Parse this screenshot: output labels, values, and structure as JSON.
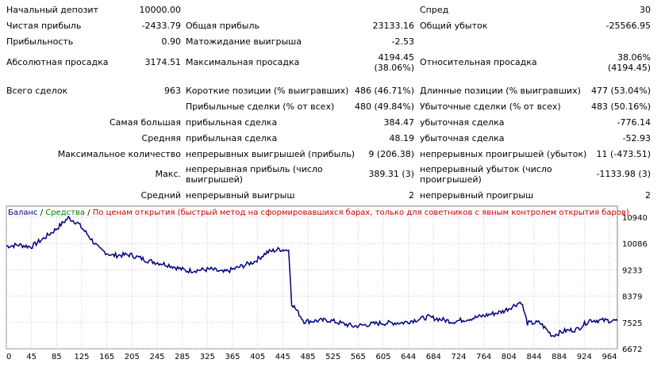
{
  "stats": {
    "initial_deposit": {
      "label": "Начальный депозит",
      "value": "10000.00"
    },
    "spread": {
      "label": "Спред",
      "value": "30"
    },
    "net_profit": {
      "label": "Чистая прибыль",
      "value": "-2433.79"
    },
    "gross_profit": {
      "label": "Общая прибыль",
      "value": "23133.16"
    },
    "gross_loss": {
      "label": "Общий убыток",
      "value": "-25566.95"
    },
    "profit_factor": {
      "label": "Прибыльность",
      "value": "0.90"
    },
    "expected_payoff": {
      "label": "Матожидание выигрыша",
      "value": "-2.53"
    },
    "abs_drawdown": {
      "label": "Абсолютная просадка",
      "value": "3174.51"
    },
    "max_drawdown": {
      "label": "Максимальная просадка",
      "value1": "4194.45",
      "value2": "(38.06%)"
    },
    "rel_drawdown": {
      "label": "Относительная просадка",
      "value1": "38.06%",
      "value2": "(4194.45)"
    },
    "total_trades": {
      "label": "Всего сделок",
      "value": "963"
    },
    "short_positions": {
      "label": "Короткие позиции (% выигравших)",
      "value": "486 (46.71%)"
    },
    "long_positions": {
      "label": "Длинные позиции (% выигравших)",
      "value": "477 (53.04%)"
    },
    "profit_trades": {
      "label": "Прибыльные сделки (% от всех)",
      "value": "480 (49.84%)"
    },
    "loss_trades": {
      "label": "Убыточные сделки (% от всех)",
      "value": "483 (50.16%)"
    },
    "largest": {
      "label": "Самая большая",
      "profit_label": "прибыльная сделка",
      "profit_value": "384.47",
      "loss_label": "убыточная сделка",
      "loss_value": "-776.14"
    },
    "average": {
      "label": "Средняя",
      "profit_label": "прибыльная сделка",
      "profit_value": "48.19",
      "loss_label": "убыточная сделка",
      "loss_value": "-52.93"
    },
    "max_consecutive": {
      "label": "Максимальное количество",
      "wins_label": "непрерывных выигрышей (прибыль)",
      "wins_value": "9 (206.38)",
      "losses_label": "непрерывных проигрышей (убыток)",
      "losses_value": "11 (-473.51)"
    },
    "max_consecutive_profit": {
      "label": "Макс.",
      "profit_label": "непрерывная прибыль (число выигрышей)",
      "profit_value": "389.31 (3)",
      "loss_label": "непрерывный убыток (число проигрышей)",
      "loss_value": "-1133.98 (3)"
    },
    "avg_consecutive": {
      "label": "Средний",
      "wins_label": "непрерывный выигрыш",
      "wins_value": "2",
      "losses_label": "непрерывный проигрыш",
      "losses_value": "2"
    }
  },
  "legend": {
    "balance": "Баланс",
    "sep1": " / ",
    "equity": "Средства",
    "sep2": " / ",
    "mode": "По ценам открытия (быстрый метод на сформировавшихся барах, только для советников с явным контролем открытия баров)"
  },
  "colors": {
    "line": "#000080",
    "grid": "#c8c8c8",
    "balance": "#000080",
    "equity": "#008000",
    "mode": "#cc0000"
  },
  "chart_data": {
    "type": "line",
    "x_ticks": [
      "0",
      "45",
      "85",
      "125",
      "165",
      "205",
      "245",
      "285",
      "325",
      "365",
      "405",
      "445",
      "485",
      "525",
      "565",
      "605",
      "644",
      "684",
      "724",
      "764",
      "804",
      "844",
      "884",
      "924",
      "964"
    ],
    "y_ticks": [
      "10940",
      "10086",
      "9233",
      "8379",
      "7525",
      "6672"
    ],
    "ylim": [
      6672,
      11300
    ],
    "xlim": [
      0,
      985
    ],
    "series": [
      {
        "x": [
          0,
          20,
          40,
          60,
          80,
          100,
          115,
          130,
          150,
          170,
          200,
          230,
          260,
          290,
          330,
          350,
          370,
          400,
          420,
          440,
          455,
          460,
          480,
          520,
          560,
          600,
          640,
          680,
          720,
          760,
          800,
          830,
          840,
          860,
          880,
          900,
          920,
          940,
          985
        ],
        "y": [
          10000,
          10040,
          9980,
          10250,
          10550,
          10920,
          10750,
          10400,
          9900,
          9700,
          9720,
          9520,
          9400,
          9200,
          9250,
          9150,
          9280,
          9500,
          9800,
          9900,
          9870,
          8150,
          7560,
          7600,
          7400,
          7500,
          7520,
          7700,
          7550,
          7700,
          7880,
          8200,
          7500,
          7520,
          7100,
          7250,
          7300,
          7600,
          7580
        ]
      }
    ]
  }
}
